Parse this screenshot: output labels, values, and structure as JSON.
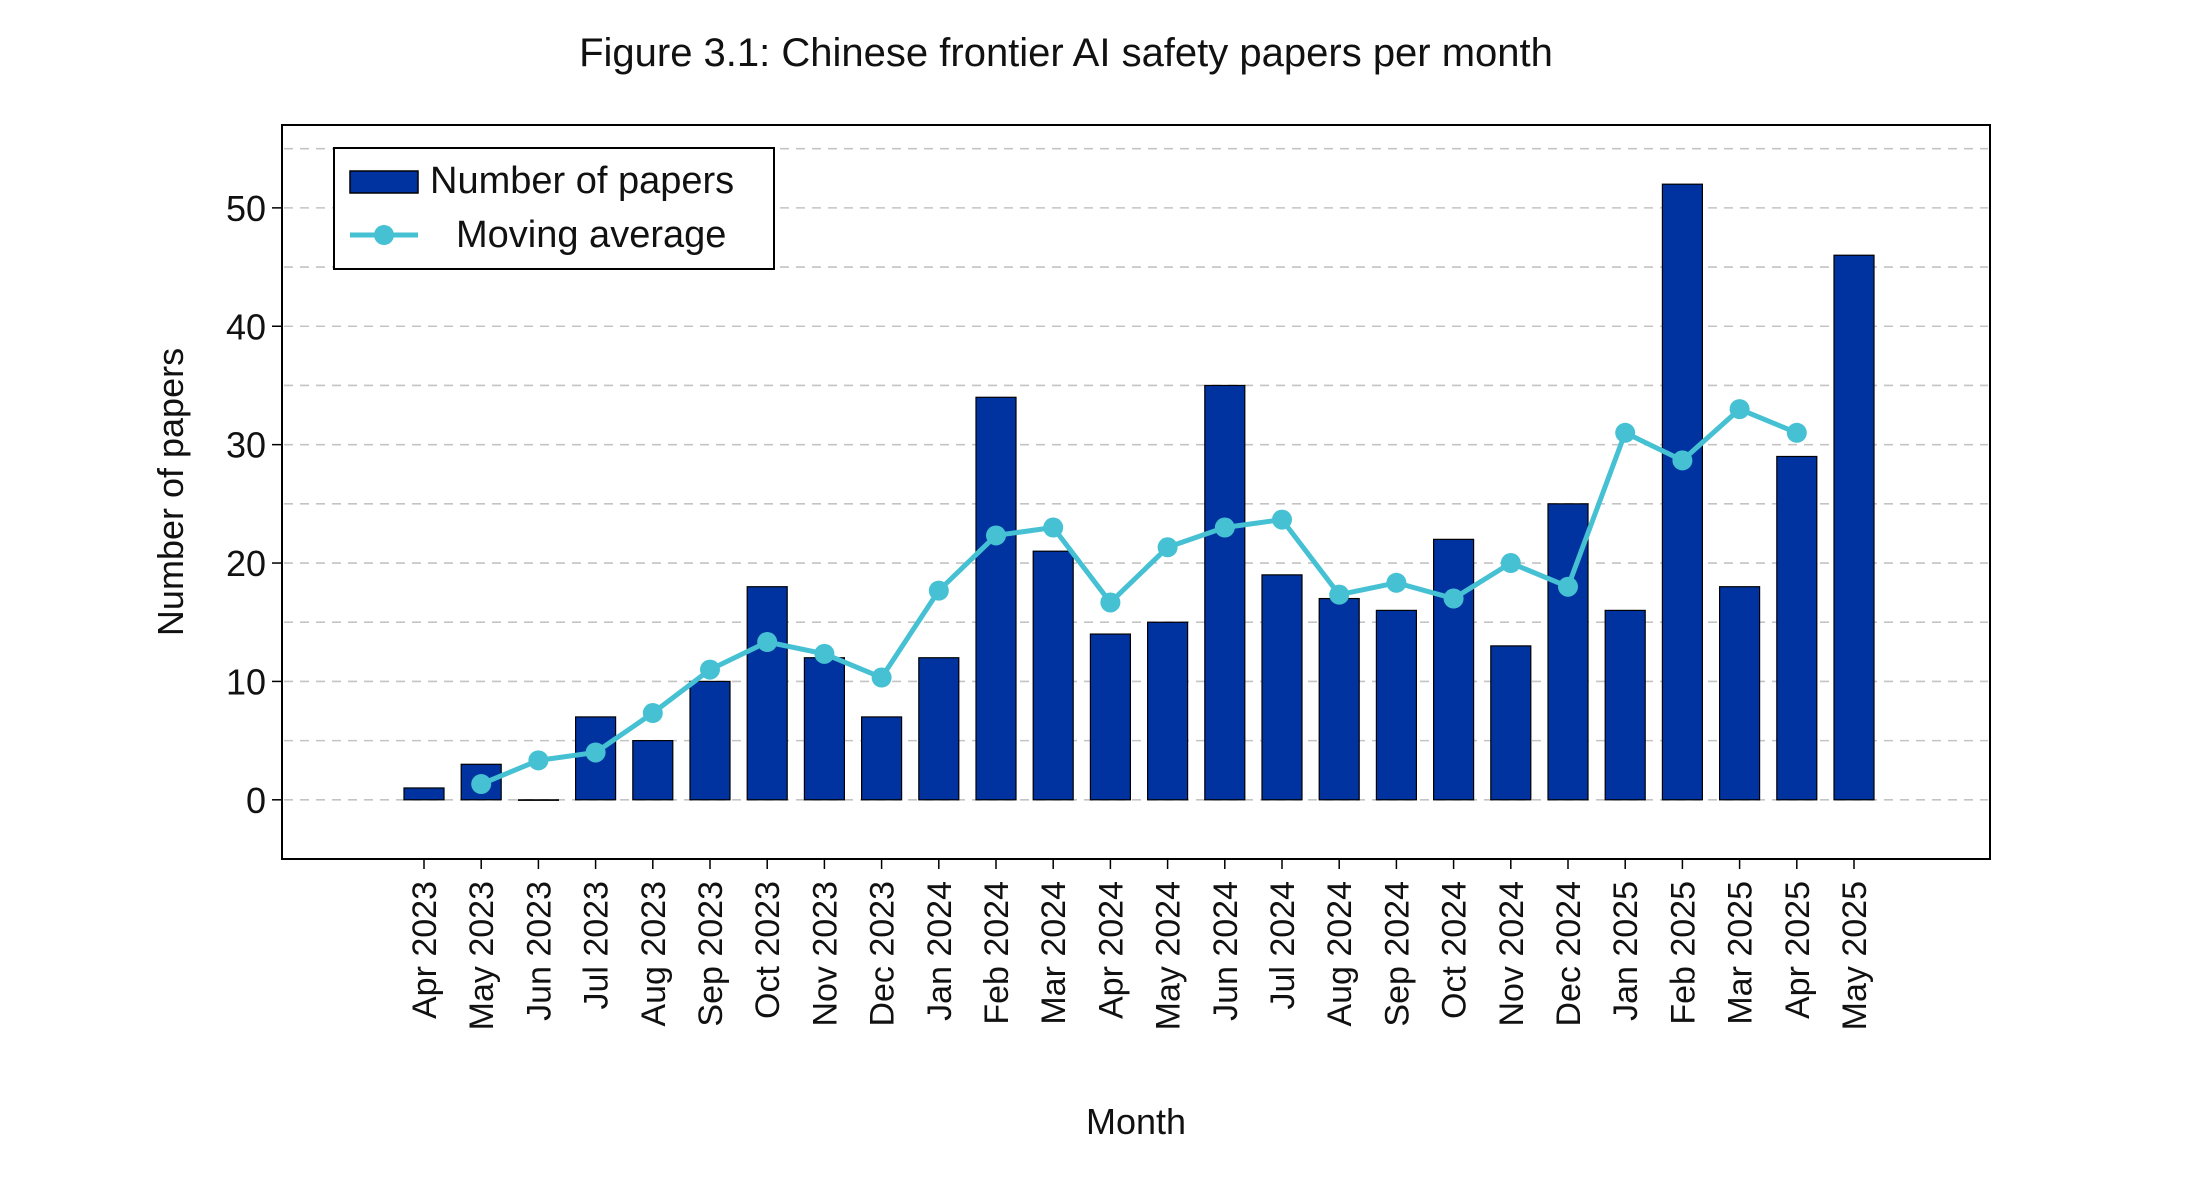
{
  "chart_data": {
    "type": "bar",
    "title": "Figure 3.1: Chinese frontier AI safety papers per month",
    "xlabel": "Month",
    "ylabel": "Number of papers",
    "ylim": [
      -5,
      57
    ],
    "yticks": [
      0,
      10,
      20,
      30,
      40,
      50
    ],
    "grid": true,
    "legend_position": "top-left",
    "categories": [
      "Apr 2023",
      "May 2023",
      "Jun 2023",
      "Jul 2023",
      "Aug 2023",
      "Sep 2023",
      "Oct 2023",
      "Nov 2023",
      "Dec 2023",
      "Jan 2024",
      "Feb 2024",
      "Mar 2024",
      "Apr 2024",
      "May 2024",
      "Jun 2024",
      "Jul 2024",
      "Aug 2024",
      "Sep 2024",
      "Oct 2024",
      "Nov 2024",
      "Dec 2024",
      "Jan 2025",
      "Feb 2025",
      "Mar 2025",
      "Apr 2025",
      "May 2025"
    ],
    "series": [
      {
        "name": "Number of papers",
        "kind": "bar",
        "color": "#0033a0",
        "values": [
          1,
          3,
          0,
          7,
          5,
          10,
          18,
          12,
          7,
          12,
          34,
          21,
          14,
          15,
          35,
          19,
          17,
          16,
          22,
          13,
          25,
          16,
          52,
          18,
          29,
          46
        ]
      },
      {
        "name": "Moving average",
        "kind": "line",
        "color": "#45c1d3",
        "values": [
          null,
          1.33,
          3.33,
          4.0,
          7.33,
          11.0,
          13.33,
          12.33,
          10.33,
          17.67,
          22.33,
          23.0,
          16.67,
          21.33,
          23.0,
          23.67,
          17.33,
          18.33,
          17.0,
          20.0,
          18.0,
          31.0,
          28.67,
          33.0,
          31.0,
          null
        ]
      }
    ]
  }
}
